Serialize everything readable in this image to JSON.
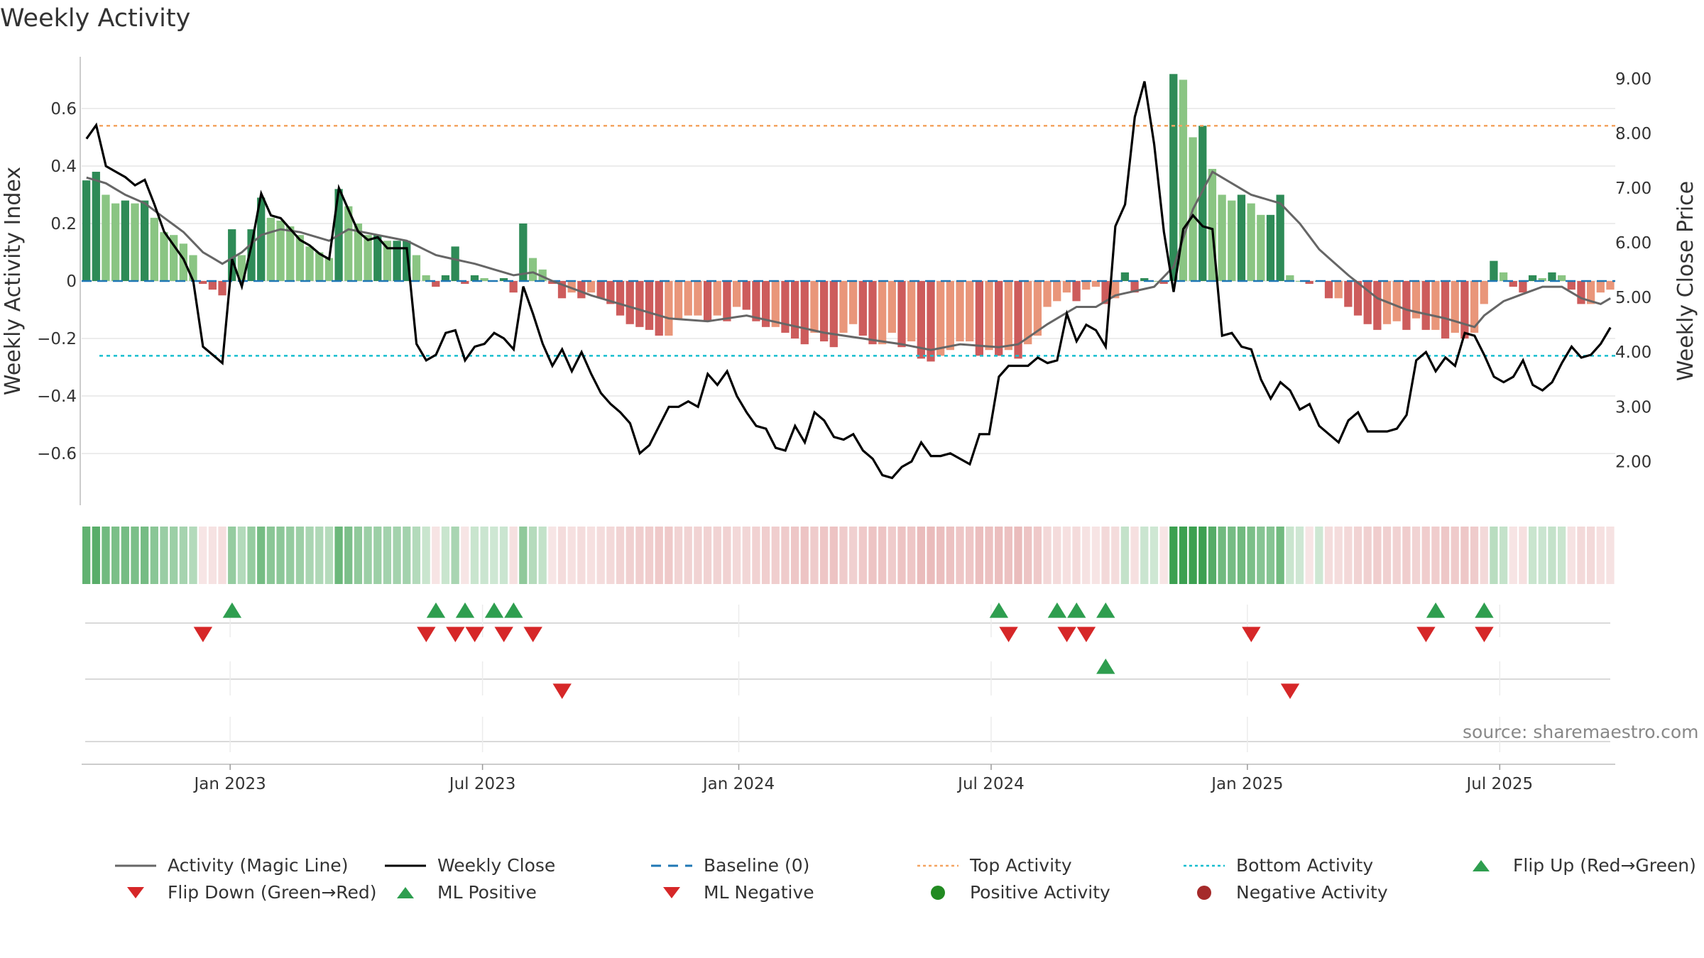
{
  "title": "Weekly Activity",
  "source_note": "source: sharemaestro.com",
  "chart_data": {
    "type": "bar",
    "title": "Weekly Activity",
    "ylabel": "Weekly Activity Index",
    "y2label": "Weekly Close Price",
    "ylim": [
      -0.78,
      0.78
    ],
    "y2lim": [
      1.2,
      9.4
    ],
    "yticks": [
      {
        "v": 0.6,
        "label": "0.6"
      },
      {
        "v": 0.4,
        "label": "0.4"
      },
      {
        "v": 0.2,
        "label": "0.2"
      },
      {
        "v": 0,
        "label": "0"
      },
      {
        "v": -0.2,
        "label": "−0.2"
      },
      {
        "v": -0.4,
        "label": "−0.4"
      },
      {
        "v": -0.6,
        "label": "−0.6"
      }
    ],
    "y2ticks": [
      {
        "v": 9,
        "label": "9.00"
      },
      {
        "v": 8,
        "label": "8.00"
      },
      {
        "v": 7,
        "label": "7.00"
      },
      {
        "v": 6,
        "label": "6.00"
      },
      {
        "v": 5,
        "label": "5.00"
      },
      {
        "v": 4,
        "label": "4.00"
      },
      {
        "v": 3,
        "label": "3.00"
      },
      {
        "v": 2,
        "label": "2.00"
      }
    ],
    "x_start_index": 0,
    "week_count": 158,
    "xticks": [
      {
        "week": 14.8,
        "label": "Jan 2023"
      },
      {
        "week": 40.8,
        "label": "Jul 2023"
      },
      {
        "week": 67.2,
        "label": "Jan 2024"
      },
      {
        "week": 93.2,
        "label": "Jul 2024"
      },
      {
        "week": 119.6,
        "label": "Jan 2025"
      },
      {
        "week": 145.6,
        "label": "Jul 2025"
      }
    ],
    "top_activity": 0.54,
    "bottom_activity": -0.26,
    "activity_keypoints": [
      [
        0,
        0.35
      ],
      [
        1,
        0.38
      ],
      [
        2,
        0.3
      ],
      [
        3,
        0.27
      ],
      [
        4,
        0.28
      ],
      [
        5,
        0.27
      ],
      [
        6,
        0.28
      ],
      [
        7,
        0.22
      ],
      [
        8,
        0.17
      ],
      [
        9,
        0.16
      ],
      [
        10,
        0.13
      ],
      [
        11,
        0.09
      ],
      [
        12,
        -0.01
      ],
      [
        13,
        -0.03
      ],
      [
        14,
        -0.05
      ],
      [
        15,
        0.18
      ],
      [
        16,
        0.09
      ],
      [
        17,
        0.18
      ],
      [
        18,
        0.29
      ],
      [
        19,
        0.22
      ],
      [
        20,
        0.21
      ],
      [
        21,
        0.19
      ],
      [
        22,
        0.16
      ],
      [
        23,
        0.12
      ],
      [
        24,
        0.1
      ],
      [
        25,
        0.08
      ],
      [
        26,
        0.32
      ],
      [
        27,
        0.26
      ],
      [
        28,
        0.2
      ],
      [
        29,
        0.16
      ],
      [
        30,
        0.16
      ],
      [
        31,
        0.14
      ],
      [
        32,
        0.14
      ],
      [
        33,
        0.14
      ],
      [
        34,
        0.09
      ],
      [
        35,
        0.02
      ],
      [
        36,
        -0.02
      ],
      [
        37,
        0.02
      ],
      [
        38,
        0.12
      ],
      [
        39,
        -0.01
      ],
      [
        40,
        0.02
      ],
      [
        41,
        0.01
      ],
      [
        42,
        0.0
      ],
      [
        43,
        0.01
      ],
      [
        44,
        -0.04
      ],
      [
        45,
        0.2
      ],
      [
        46,
        0.08
      ],
      [
        47,
        0.04
      ],
      [
        48,
        -0.01
      ],
      [
        49,
        -0.06
      ],
      [
        50,
        -0.04
      ],
      [
        51,
        -0.06
      ],
      [
        52,
        -0.04
      ],
      [
        53,
        -0.06
      ],
      [
        54,
        -0.08
      ],
      [
        55,
        -0.12
      ],
      [
        56,
        -0.15
      ],
      [
        57,
        -0.16
      ],
      [
        58,
        -0.17
      ],
      [
        59,
        -0.19
      ],
      [
        60,
        -0.19
      ],
      [
        61,
        -0.13
      ],
      [
        62,
        -0.12
      ],
      [
        63,
        -0.12
      ],
      [
        64,
        -0.14
      ],
      [
        65,
        -0.12
      ],
      [
        66,
        -0.14
      ],
      [
        67,
        -0.09
      ],
      [
        68,
        -0.1
      ],
      [
        69,
        -0.14
      ],
      [
        70,
        -0.16
      ],
      [
        71,
        -0.16
      ],
      [
        72,
        -0.18
      ],
      [
        73,
        -0.2
      ],
      [
        74,
        -0.22
      ],
      [
        75,
        -0.18
      ],
      [
        76,
        -0.21
      ],
      [
        77,
        -0.23
      ],
      [
        78,
        -0.18
      ],
      [
        79,
        -0.15
      ],
      [
        80,
        -0.19
      ],
      [
        81,
        -0.22
      ],
      [
        82,
        -0.22
      ],
      [
        83,
        -0.18
      ],
      [
        84,
        -0.23
      ],
      [
        85,
        -0.21
      ],
      [
        86,
        -0.27
      ],
      [
        87,
        -0.28
      ],
      [
        88,
        -0.26
      ],
      [
        89,
        -0.24
      ],
      [
        90,
        -0.21
      ],
      [
        91,
        -0.21
      ],
      [
        92,
        -0.26
      ],
      [
        93,
        -0.24
      ],
      [
        94,
        -0.26
      ],
      [
        95,
        -0.24
      ],
      [
        96,
        -0.27
      ],
      [
        97,
        -0.22
      ],
      [
        98,
        -0.19
      ],
      [
        99,
        -0.09
      ],
      [
        100,
        -0.07
      ],
      [
        101,
        -0.04
      ],
      [
        102,
        -0.07
      ],
      [
        103,
        -0.03
      ],
      [
        104,
        -0.02
      ],
      [
        105,
        -0.08
      ],
      [
        106,
        -0.06
      ],
      [
        107,
        0.03
      ],
      [
        108,
        -0.04
      ],
      [
        109,
        0.01
      ],
      [
        110,
        0.0
      ],
      [
        111,
        -0.01
      ],
      [
        112,
        0.72
      ],
      [
        113,
        0.7
      ],
      [
        114,
        0.5
      ],
      [
        115,
        0.54
      ],
      [
        116,
        0.39
      ],
      [
        117,
        0.3
      ],
      [
        118,
        0.28
      ],
      [
        119,
        0.3
      ],
      [
        120,
        0.27
      ],
      [
        121,
        0.23
      ],
      [
        122,
        0.23
      ],
      [
        123,
        0.3
      ],
      [
        124,
        0.02
      ],
      [
        125,
        0.0
      ],
      [
        126,
        -0.01
      ],
      [
        127,
        0.0
      ],
      [
        128,
        -0.06
      ],
      [
        129,
        -0.06
      ],
      [
        130,
        -0.09
      ],
      [
        131,
        -0.12
      ],
      [
        132,
        -0.15
      ],
      [
        133,
        -0.17
      ],
      [
        134,
        -0.15
      ],
      [
        135,
        -0.14
      ],
      [
        136,
        -0.17
      ],
      [
        137,
        -0.13
      ],
      [
        138,
        -0.17
      ],
      [
        139,
        -0.17
      ],
      [
        140,
        -0.2
      ],
      [
        141,
        -0.18
      ],
      [
        142,
        -0.2
      ],
      [
        143,
        -0.18
      ],
      [
        144,
        -0.08
      ],
      [
        145,
        0.07
      ],
      [
        146,
        0.03
      ],
      [
        147,
        -0.02
      ],
      [
        148,
        -0.04
      ],
      [
        149,
        0.02
      ],
      [
        150,
        0.01
      ],
      [
        151,
        0.03
      ],
      [
        152,
        0.02
      ],
      [
        153,
        -0.03
      ],
      [
        154,
        -0.08
      ],
      [
        155,
        -0.08
      ],
      [
        156,
        -0.04
      ],
      [
        157,
        -0.03
      ]
    ],
    "magic_line_keypoints": [
      [
        0,
        0.36
      ],
      [
        2,
        0.34
      ],
      [
        4,
        0.3
      ],
      [
        6,
        0.27
      ],
      [
        8,
        0.22
      ],
      [
        10,
        0.17
      ],
      [
        12,
        0.1
      ],
      [
        14,
        0.06
      ],
      [
        16,
        0.1
      ],
      [
        18,
        0.16
      ],
      [
        20,
        0.18
      ],
      [
        22,
        0.17
      ],
      [
        25,
        0.14
      ],
      [
        27,
        0.18
      ],
      [
        30,
        0.16
      ],
      [
        33,
        0.14
      ],
      [
        36,
        0.09
      ],
      [
        40,
        0.06
      ],
      [
        44,
        0.02
      ],
      [
        46,
        0.03
      ],
      [
        48,
        0.0
      ],
      [
        52,
        -0.05
      ],
      [
        56,
        -0.09
      ],
      [
        60,
        -0.13
      ],
      [
        64,
        -0.14
      ],
      [
        68,
        -0.12
      ],
      [
        72,
        -0.15
      ],
      [
        76,
        -0.18
      ],
      [
        80,
        -0.2
      ],
      [
        84,
        -0.22
      ],
      [
        87,
        -0.24
      ],
      [
        90,
        -0.22
      ],
      [
        94,
        -0.23
      ],
      [
        96,
        -0.22
      ],
      [
        99,
        -0.15
      ],
      [
        102,
        -0.09
      ],
      [
        104,
        -0.09
      ],
      [
        106,
        -0.05
      ],
      [
        110,
        -0.02
      ],
      [
        112,
        0.05
      ],
      [
        114,
        0.25
      ],
      [
        116,
        0.38
      ],
      [
        118,
        0.34
      ],
      [
        120,
        0.3
      ],
      [
        123,
        0.27
      ],
      [
        125,
        0.2
      ],
      [
        127,
        0.11
      ],
      [
        130,
        0.02
      ],
      [
        133,
        -0.06
      ],
      [
        136,
        -0.1
      ],
      [
        140,
        -0.13
      ],
      [
        143,
        -0.16
      ],
      [
        144,
        -0.12
      ],
      [
        146,
        -0.07
      ],
      [
        150,
        -0.02
      ],
      [
        152,
        -0.02
      ],
      [
        154,
        -0.06
      ],
      [
        156,
        -0.08
      ],
      [
        157,
        -0.06
      ]
    ],
    "close_keypoints": [
      [
        0,
        7.9
      ],
      [
        1,
        8.15
      ],
      [
        2,
        7.4
      ],
      [
        3,
        7.3
      ],
      [
        4,
        7.2
      ],
      [
        5,
        7.05
      ],
      [
        6,
        7.15
      ],
      [
        7,
        6.7
      ],
      [
        8,
        6.2
      ],
      [
        9,
        5.95
      ],
      [
        10,
        5.7
      ],
      [
        11,
        5.3
      ],
      [
        12,
        4.1
      ],
      [
        13,
        3.95
      ],
      [
        14,
        3.8
      ],
      [
        15,
        5.7
      ],
      [
        16,
        5.2
      ],
      [
        17,
        5.95
      ],
      [
        18,
        6.9
      ],
      [
        19,
        6.5
      ],
      [
        20,
        6.45
      ],
      [
        21,
        6.25
      ],
      [
        22,
        6.05
      ],
      [
        23,
        5.95
      ],
      [
        24,
        5.8
      ],
      [
        25,
        5.7
      ],
      [
        26,
        7.0
      ],
      [
        27,
        6.6
      ],
      [
        28,
        6.2
      ],
      [
        29,
        6.05
      ],
      [
        30,
        6.1
      ],
      [
        31,
        5.9
      ],
      [
        32,
        5.9
      ],
      [
        33,
        5.9
      ],
      [
        34,
        4.15
      ],
      [
        35,
        3.85
      ],
      [
        36,
        3.95
      ],
      [
        37,
        4.35
      ],
      [
        38,
        4.4
      ],
      [
        39,
        3.85
      ],
      [
        40,
        4.1
      ],
      [
        41,
        4.15
      ],
      [
        42,
        4.35
      ],
      [
        43,
        4.25
      ],
      [
        44,
        4.05
      ],
      [
        45,
        5.2
      ],
      [
        46,
        4.7
      ],
      [
        47,
        4.15
      ],
      [
        48,
        3.75
      ],
      [
        49,
        4.05
      ],
      [
        50,
        3.65
      ],
      [
        51,
        4.0
      ],
      [
        52,
        3.6
      ],
      [
        53,
        3.25
      ],
      [
        54,
        3.05
      ],
      [
        55,
        2.9
      ],
      [
        56,
        2.7
      ],
      [
        57,
        2.15
      ],
      [
        58,
        2.3
      ],
      [
        59,
        2.65
      ],
      [
        60,
        3.0
      ],
      [
        61,
        3.0
      ],
      [
        62,
        3.1
      ],
      [
        63,
        3.0
      ],
      [
        64,
        3.6
      ],
      [
        65,
        3.4
      ],
      [
        66,
        3.65
      ],
      [
        67,
        3.2
      ],
      [
        68,
        2.9
      ],
      [
        69,
        2.65
      ],
      [
        70,
        2.6
      ],
      [
        71,
        2.25
      ],
      [
        72,
        2.2
      ],
      [
        73,
        2.65
      ],
      [
        74,
        2.35
      ],
      [
        75,
        2.9
      ],
      [
        76,
        2.75
      ],
      [
        77,
        2.45
      ],
      [
        78,
        2.4
      ],
      [
        79,
        2.5
      ],
      [
        80,
        2.2
      ],
      [
        81,
        2.05
      ],
      [
        82,
        1.75
      ],
      [
        83,
        1.7
      ],
      [
        84,
        1.9
      ],
      [
        85,
        2.0
      ],
      [
        86,
        2.35
      ],
      [
        87,
        2.1
      ],
      [
        88,
        2.1
      ],
      [
        89,
        2.15
      ],
      [
        90,
        2.05
      ],
      [
        91,
        1.95
      ],
      [
        92,
        2.5
      ],
      [
        93,
        2.5
      ],
      [
        94,
        3.55
      ],
      [
        95,
        3.75
      ],
      [
        96,
        3.75
      ],
      [
        97,
        3.75
      ],
      [
        98,
        3.9
      ],
      [
        99,
        3.8
      ],
      [
        100,
        3.85
      ],
      [
        101,
        4.7
      ],
      [
        102,
        4.2
      ],
      [
        103,
        4.5
      ],
      [
        104,
        4.4
      ],
      [
        105,
        4.1
      ],
      [
        106,
        6.3
      ],
      [
        107,
        6.7
      ],
      [
        108,
        8.3
      ],
      [
        109,
        8.95
      ],
      [
        110,
        7.8
      ],
      [
        111,
        6.2
      ],
      [
        112,
        5.1
      ],
      [
        113,
        6.25
      ],
      [
        114,
        6.5
      ],
      [
        115,
        6.3
      ],
      [
        116,
        6.25
      ],
      [
        117,
        4.3
      ],
      [
        118,
        4.35
      ],
      [
        119,
        4.1
      ],
      [
        120,
        4.05
      ],
      [
        121,
        3.5
      ],
      [
        122,
        3.15
      ],
      [
        123,
        3.45
      ],
      [
        124,
        3.3
      ],
      [
        125,
        2.95
      ],
      [
        126,
        3.05
      ],
      [
        127,
        2.65
      ],
      [
        128,
        2.5
      ],
      [
        129,
        2.35
      ],
      [
        130,
        2.75
      ],
      [
        131,
        2.9
      ],
      [
        132,
        2.55
      ],
      [
        133,
        2.55
      ],
      [
        134,
        2.55
      ],
      [
        135,
        2.6
      ],
      [
        136,
        2.85
      ],
      [
        137,
        3.85
      ],
      [
        138,
        4.0
      ],
      [
        139,
        3.65
      ],
      [
        140,
        3.9
      ],
      [
        141,
        3.75
      ],
      [
        142,
        4.35
      ],
      [
        143,
        4.3
      ],
      [
        144,
        3.95
      ],
      [
        145,
        3.55
      ],
      [
        146,
        3.45
      ],
      [
        147,
        3.55
      ],
      [
        148,
        3.85
      ],
      [
        149,
        3.4
      ],
      [
        150,
        3.3
      ],
      [
        151,
        3.45
      ],
      [
        152,
        3.8
      ],
      [
        153,
        4.1
      ],
      [
        154,
        3.9
      ],
      [
        155,
        3.95
      ],
      [
        156,
        4.15
      ],
      [
        157,
        4.45
      ]
    ],
    "flip_up_weeks": [
      15,
      36,
      39,
      42,
      44,
      94,
      100,
      102,
      105,
      139,
      144
    ],
    "flip_down_weeks": [
      12,
      35,
      38,
      40,
      43,
      46,
      95,
      101,
      103,
      120,
      138,
      144
    ],
    "ml_positive_weeks": [
      105
    ],
    "ml_negative_weeks": [
      49,
      124
    ],
    "legend": [
      {
        "key": "magic",
        "label": "Activity (Magic Line)",
        "color": "#666666",
        "kind": "line"
      },
      {
        "key": "close",
        "label": "Weekly Close",
        "color": "#000000",
        "kind": "line"
      },
      {
        "key": "baseline",
        "label": "Baseline (0)",
        "color": "#1f77b4",
        "kind": "dashed"
      },
      {
        "key": "top",
        "label": "Top Activity",
        "color": "#f4a460",
        "kind": "dotted"
      },
      {
        "key": "bottom",
        "label": "Bottom Activity",
        "color": "#17becf",
        "kind": "dotted"
      },
      {
        "key": "flipup",
        "label": "Flip Up (Red→Green)",
        "color": "#2e9e4f",
        "kind": "tri-up"
      },
      {
        "key": "flipdown",
        "label": "Flip Down (Green→Red)",
        "color": "#d62728",
        "kind": "tri-down"
      },
      {
        "key": "mlpos",
        "label": "ML Positive",
        "color": "#2e9e4f",
        "kind": "tri-up"
      },
      {
        "key": "mlneg",
        "label": "ML Negative",
        "color": "#d62728",
        "kind": "tri-down"
      },
      {
        "key": "posact",
        "label": "Positive Activity",
        "color": "#228b22",
        "kind": "dot"
      },
      {
        "key": "negact",
        "label": "Negative Activity",
        "color": "#a52a2a",
        "kind": "dot"
      }
    ],
    "colors": {
      "pos_strong": "#2e8b57",
      "pos_light": "#8ac583",
      "neg_strong": "#cd5c5c",
      "neg_light": "#e9967a",
      "grid": "#e6e6e6",
      "axis": "#cccccc"
    }
  }
}
